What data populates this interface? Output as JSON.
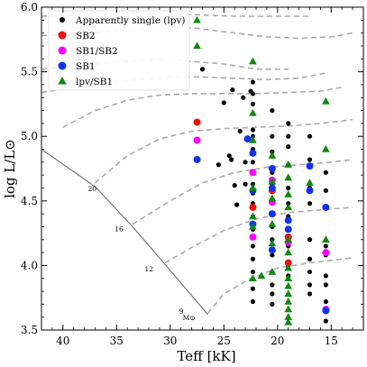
{
  "chart_data": {
    "type": "scatter",
    "xlabel": "Teff [kK]",
    "ylabel": "log L/L⊙",
    "xlim": [
      42,
      12
    ],
    "ylim": [
      3.5,
      6.0
    ],
    "xticks": [
      40,
      35,
      30,
      25,
      20,
      15
    ],
    "yticks": [
      3.5,
      4.0,
      4.5,
      5.0,
      5.5,
      6.0
    ],
    "legend_position": "top-left",
    "colors": {
      "single": "#000000",
      "sb2": "#ee1111",
      "sb1sb2": "#ff00ff",
      "sb1": "#1133ee",
      "lpvsb1": "#118811",
      "track": "#aaaaaa",
      "zams": "#777777"
    },
    "series": [
      {
        "name": "Apparently single (lpv)",
        "marker": "circle",
        "color": "#000000",
        "points": [
          [
            27,
            5.52
          ],
          [
            25,
            5.26
          ],
          [
            24.2,
            5.36
          ],
          [
            23.2,
            5.3
          ],
          [
            22.5,
            5.35
          ],
          [
            22.3,
            5.42
          ],
          [
            25.5,
            4.78
          ],
          [
            24.5,
            4.85
          ],
          [
            24.3,
            4.82
          ],
          [
            23.5,
            5.04
          ],
          [
            23.8,
            4.47
          ],
          [
            23,
            4.8
          ],
          [
            23,
            4.63
          ],
          [
            24,
            4.62
          ],
          [
            23.8,
            4.47
          ],
          [
            22.3,
            5.33
          ],
          [
            22.3,
            5.25
          ],
          [
            22.3,
            5.05
          ],
          [
            22.3,
            5.0
          ],
          [
            22.3,
            4.9
          ],
          [
            22.3,
            4.8
          ],
          [
            22.3,
            4.72
          ],
          [
            22.3,
            4.63
          ],
          [
            22.3,
            4.56
          ],
          [
            22.3,
            4.48
          ],
          [
            22.3,
            4.38
          ],
          [
            22.3,
            4.28
          ],
          [
            22.3,
            4.15
          ],
          [
            22.3,
            4.05
          ],
          [
            22.3,
            3.95
          ],
          [
            22.3,
            3.82
          ],
          [
            22.3,
            3.72
          ],
          [
            20.5,
            5.2
          ],
          [
            20.5,
            5.0
          ],
          [
            20.5,
            4.88
          ],
          [
            20.5,
            4.72
          ],
          [
            20.5,
            4.62
          ],
          [
            20.5,
            4.5
          ],
          [
            20.5,
            4.4
          ],
          [
            20.5,
            4.3
          ],
          [
            20.5,
            4.2
          ],
          [
            20.5,
            4.08
          ],
          [
            20.5,
            3.95
          ],
          [
            20.5,
            3.85
          ],
          [
            20.5,
            3.78
          ],
          [
            20.5,
            3.7
          ],
          [
            19,
            5.1
          ],
          [
            19,
            5.0
          ],
          [
            19,
            4.92
          ],
          [
            19,
            4.78
          ],
          [
            19,
            4.6
          ],
          [
            19,
            4.48
          ],
          [
            19,
            4.38
          ],
          [
            19,
            4.28
          ],
          [
            19,
            4.15
          ],
          [
            19,
            4.0
          ],
          [
            19,
            3.92
          ],
          [
            17,
            5.0
          ],
          [
            17,
            4.82
          ],
          [
            17,
            4.6
          ],
          [
            17,
            4.48
          ],
          [
            17,
            4.2
          ],
          [
            17,
            4.05
          ],
          [
            17,
            3.95
          ],
          [
            17,
            3.85
          ],
          [
            17,
            3.78
          ],
          [
            15.5,
            4.72
          ],
          [
            15.5,
            4.58
          ],
          [
            15.5,
            4.15
          ],
          [
            15.5,
            4.08
          ],
          [
            15.5,
            3.92
          ],
          [
            15.5,
            3.85
          ],
          [
            15.5,
            3.72
          ],
          [
            15.5,
            3.57
          ]
        ]
      },
      {
        "name": "SB2",
        "marker": "circle",
        "color": "#ee1111",
        "points": [
          [
            27.5,
            5.11
          ],
          [
            20.5,
            4.58
          ],
          [
            22.3,
            4.45
          ],
          [
            19,
            4.22
          ],
          [
            19,
            4.02
          ]
        ]
      },
      {
        "name": "SB1/SB2",
        "marker": "circle",
        "color": "#ff00ff",
        "points": [
          [
            27.5,
            4.97
          ],
          [
            22.3,
            4.72
          ],
          [
            20.5,
            4.66
          ],
          [
            20.5,
            4.49
          ],
          [
            22.3,
            4.22
          ],
          [
            19,
            4.18
          ],
          [
            15.5,
            4.1
          ],
          [
            15.5,
            3.66
          ]
        ]
      },
      {
        "name": "SB1",
        "marker": "circle",
        "color": "#1133ee",
        "points": [
          [
            27.5,
            4.82
          ],
          [
            22.8,
            4.98
          ],
          [
            22.3,
            4.87
          ],
          [
            20.5,
            4.75
          ],
          [
            20.5,
            4.6
          ],
          [
            22.3,
            4.58
          ],
          [
            22.3,
            4.32
          ],
          [
            20.5,
            4.4
          ],
          [
            20.5,
            4.12
          ],
          [
            19,
            4.35
          ],
          [
            19,
            4.28
          ],
          [
            17,
            4.77
          ],
          [
            17,
            4.58
          ],
          [
            15.5,
            4.45
          ],
          [
            15.5,
            3.65
          ]
        ]
      },
      {
        "name": "lpv/SB1",
        "marker": "triangle",
        "color": "#118811",
        "points": [
          [
            27.5,
            5.9
          ],
          [
            27.5,
            5.7
          ],
          [
            22.3,
            5.58
          ],
          [
            22.3,
            5.18
          ],
          [
            15.5,
            5.27
          ],
          [
            22.3,
            4.97
          ],
          [
            20.5,
            4.85
          ],
          [
            19,
            4.78
          ],
          [
            15.5,
            4.9
          ],
          [
            22.3,
            4.6
          ],
          [
            20.5,
            4.65
          ],
          [
            20.5,
            4.52
          ],
          [
            19,
            4.68
          ],
          [
            19,
            4.55
          ],
          [
            17,
            4.64
          ],
          [
            22.3,
            4.38
          ],
          [
            22.3,
            4.3
          ],
          [
            20.5,
            4.32
          ],
          [
            19,
            4.45
          ],
          [
            19,
            4.2
          ],
          [
            20.5,
            4.17
          ],
          [
            15.5,
            4.2
          ],
          [
            21.5,
            3.92
          ],
          [
            22.3,
            3.9
          ],
          [
            20.5,
            3.95
          ],
          [
            19,
            4.1
          ],
          [
            19,
            3.98
          ],
          [
            19,
            3.9
          ],
          [
            19,
            3.84
          ],
          [
            19,
            3.78
          ],
          [
            19,
            3.72
          ],
          [
            19,
            3.66
          ],
          [
            19,
            3.6
          ],
          [
            19,
            3.56
          ]
        ]
      }
    ],
    "zams_masses": [
      {
        "label": "20",
        "teff": 36.5,
        "logl": 4.63
      },
      {
        "label": "16",
        "teff": 34.0,
        "logl": 4.32
      },
      {
        "label": "12",
        "teff": 31.2,
        "logl": 4.01
      },
      {
        "label": "9",
        "teff": 28.0,
        "logl": 3.68
      }
    ],
    "zams_unit": "M⊙",
    "zams_line": [
      [
        42,
        4.9
      ],
      [
        37,
        4.61
      ],
      [
        33.5,
        4.3
      ],
      [
        30.5,
        4.01
      ],
      [
        26.5,
        3.62
      ]
    ],
    "tracks": [
      [
        [
          42,
          5.93
        ],
        [
          39,
          5.94
        ],
        [
          36,
          5.95
        ],
        [
          33,
          5.96
        ],
        [
          30,
          5.95
        ],
        [
          27,
          5.94
        ],
        [
          24,
          5.93
        ],
        [
          21,
          5.93
        ],
        [
          17,
          5.93
        ]
      ],
      [
        [
          42,
          5.78
        ],
        [
          38,
          5.8
        ],
        [
          34,
          5.82
        ],
        [
          31,
          5.85
        ],
        [
          28,
          5.84
        ],
        [
          24,
          5.8
        ],
        [
          21,
          5.77
        ],
        [
          18,
          5.76
        ],
        [
          15,
          5.77
        ],
        [
          13,
          5.8
        ]
      ],
      [
        [
          42,
          5.52
        ],
        [
          38,
          5.55
        ],
        [
          34,
          5.58
        ],
        [
          31,
          5.6
        ],
        [
          28,
          5.58
        ],
        [
          25,
          5.56
        ],
        [
          22,
          5.52
        ],
        [
          19,
          5.52
        ]
      ],
      [
        [
          42,
          5.34
        ],
        [
          38,
          5.39
        ],
        [
          34,
          5.43
        ],
        [
          30,
          5.46
        ],
        [
          27,
          5.46
        ],
        [
          24,
          5.45
        ],
        [
          21,
          5.44
        ],
        [
          18,
          5.45
        ],
        [
          15.5,
          5.49
        ]
      ],
      [
        [
          40,
          5.07
        ],
        [
          37,
          5.2
        ],
        [
          34,
          5.28
        ],
        [
          31,
          5.32
        ],
        [
          28,
          5.33
        ],
        [
          25,
          5.33
        ],
        [
          22,
          5.33
        ],
        [
          19,
          5.34
        ],
        [
          16,
          5.35
        ],
        [
          14,
          5.38
        ]
      ],
      [
        [
          37,
          4.64
        ],
        [
          34,
          4.85
        ],
        [
          31,
          4.98
        ],
        [
          28,
          5.04
        ],
        [
          25,
          5.06
        ],
        [
          22,
          5.07
        ],
        [
          19,
          5.08
        ],
        [
          16,
          5.1
        ],
        [
          13,
          5.13
        ]
      ],
      [
        [
          33.5,
          4.32
        ],
        [
          30,
          4.5
        ],
        [
          27,
          4.64
        ],
        [
          24,
          4.72
        ],
        [
          21,
          4.76
        ],
        [
          18,
          4.78
        ],
        [
          15,
          4.8
        ],
        [
          13,
          4.82
        ]
      ],
      [
        [
          30.5,
          4.02
        ],
        [
          28,
          4.14
        ],
        [
          25,
          4.27
        ],
        [
          22,
          4.36
        ],
        [
          19,
          4.41
        ],
        [
          16,
          4.43
        ],
        [
          13,
          4.45
        ]
      ],
      [
        [
          26.5,
          3.63
        ],
        [
          25,
          3.78
        ],
        [
          22.5,
          3.9
        ],
        [
          20,
          3.98
        ],
        [
          17,
          4.02
        ],
        [
          15,
          4.04
        ],
        [
          13,
          4.06
        ]
      ]
    ],
    "legend": [
      {
        "key": "single",
        "label": "Apparently single (lpv)"
      },
      {
        "key": "sb2",
        "label": "SB2"
      },
      {
        "key": "sb1sb2",
        "label": "SB1/SB2"
      },
      {
        "key": "sb1",
        "label": "SB1"
      },
      {
        "key": "lpvsb1",
        "label": "lpv/SB1"
      }
    ]
  }
}
